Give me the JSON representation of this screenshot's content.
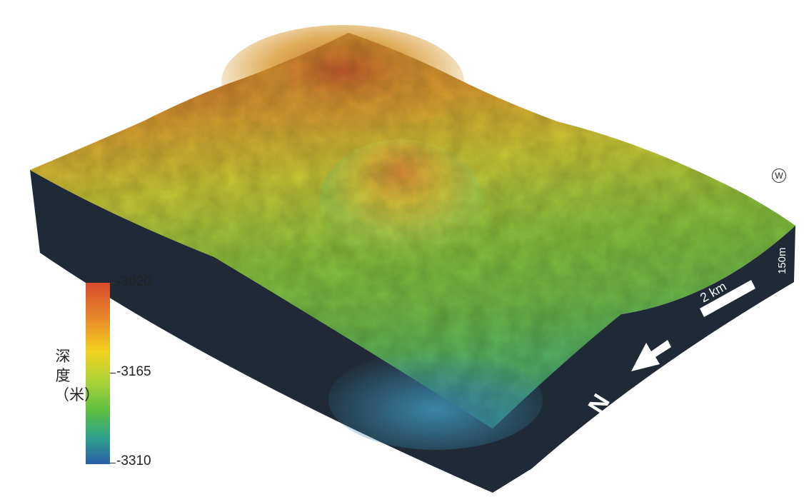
{
  "map": {
    "legend": {
      "title": "深度（米）",
      "ticks": [
        {
          "label": "-3020",
          "value": -3020
        },
        {
          "label": "-3165",
          "value": -3165
        },
        {
          "label": "-3310",
          "value": -3310
        }
      ],
      "colors": [
        "#d84a2c",
        "#e88a2a",
        "#f2d21e",
        "#a8d23a",
        "#5fbf3f",
        "#2fa38a",
        "#2b5ea8"
      ]
    },
    "scale_bar": {
      "label": "2 km"
    },
    "north_arrow": {
      "label": "N"
    },
    "vertical_scale": {
      "label": "150m"
    },
    "corner_mark": "W"
  }
}
